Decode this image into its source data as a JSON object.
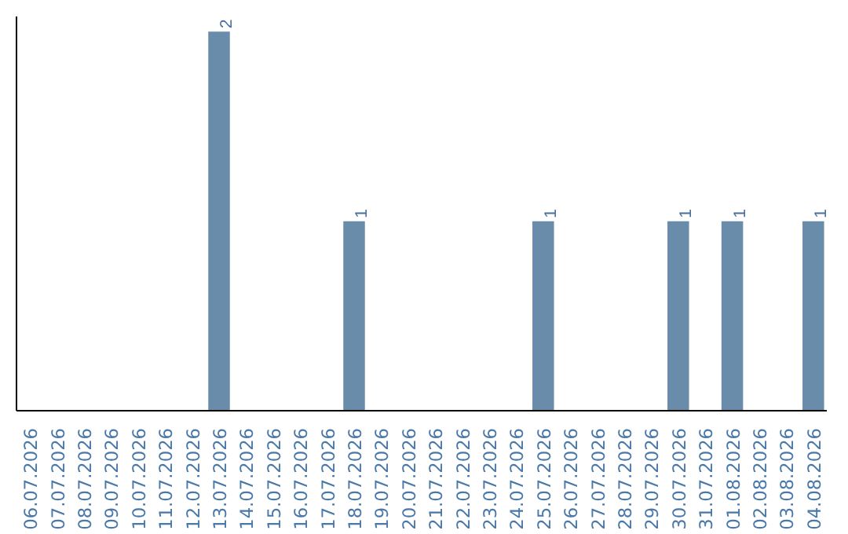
{
  "chart_data": {
    "type": "bar",
    "categories": [
      "06.07.2026",
      "07.07.2026",
      "08.07.2026",
      "09.07.2026",
      "10.07.2026",
      "11.07.2026",
      "12.07.2026",
      "13.07.2026",
      "14.07.2026",
      "15.07.2026",
      "16.07.2026",
      "17.07.2026",
      "18.07.2026",
      "19.07.2026",
      "20.07.2026",
      "21.07.2026",
      "22.07.2026",
      "23.07.2026",
      "24.07.2026",
      "25.07.2026",
      "26.07.2026",
      "27.07.2026",
      "28.07.2026",
      "29.07.2026",
      "30.07.2026",
      "31.07.2026",
      "01.08.2026",
      "02.08.2026",
      "03.08.2026",
      "04.08.2026"
    ],
    "values": [
      0,
      0,
      0,
      0,
      0,
      0,
      0,
      2,
      0,
      0,
      0,
      0,
      1,
      0,
      0,
      0,
      0,
      0,
      0,
      1,
      0,
      0,
      0,
      0,
      1,
      0,
      1,
      0,
      0,
      1
    ],
    "value_labels": [
      null,
      null,
      null,
      null,
      null,
      null,
      null,
      "2",
      null,
      null,
      null,
      null,
      "1",
      null,
      null,
      null,
      null,
      null,
      null,
      "1",
      null,
      null,
      null,
      null,
      "1",
      null,
      "1",
      null,
      null,
      "1"
    ],
    "color": "#6a8cab",
    "tick_labels": "x",
    "grid": false
  }
}
